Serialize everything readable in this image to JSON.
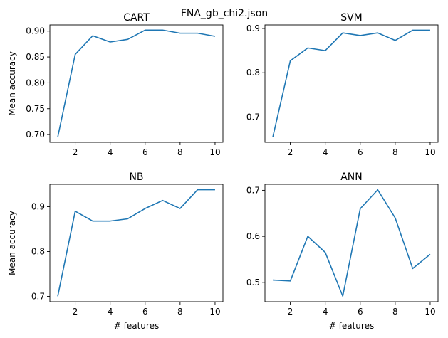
{
  "figure": {
    "title": "FNA_gb_chi2.json"
  },
  "chart_data": [
    {
      "type": "line",
      "title": "CART",
      "xlabel": "",
      "ylabel": "Mean accuracy",
      "x": [
        1,
        2,
        3,
        4,
        5,
        6,
        7,
        8,
        9,
        10
      ],
      "values": [
        0.695,
        0.855,
        0.891,
        0.879,
        0.884,
        0.902,
        0.902,
        0.896,
        0.896,
        0.89
      ],
      "xlim": [
        0.55,
        10.45
      ],
      "ylim": [
        0.685,
        0.912
      ],
      "xticks": [
        2,
        4,
        6,
        8,
        10
      ],
      "yticks": [
        0.7,
        0.75,
        0.8,
        0.85,
        0.9
      ],
      "ytick_labels": [
        "0.70",
        "0.75",
        "0.80",
        "0.85",
        "0.90"
      ],
      "grid": false
    },
    {
      "type": "line",
      "title": "SVM",
      "xlabel": "",
      "ylabel": "",
      "x": [
        1,
        2,
        3,
        4,
        5,
        6,
        7,
        8,
        9,
        10
      ],
      "values": [
        0.655,
        0.827,
        0.856,
        0.85,
        0.89,
        0.884,
        0.89,
        0.873,
        0.896,
        0.896
      ],
      "xlim": [
        0.55,
        10.45
      ],
      "ylim": [
        0.643,
        0.908
      ],
      "xticks": [
        2,
        4,
        6,
        8,
        10
      ],
      "yticks": [
        0.7,
        0.8,
        0.9
      ],
      "ytick_labels": [
        "0.7",
        "0.8",
        "0.9"
      ],
      "grid": false
    },
    {
      "type": "line",
      "title": "NB",
      "xlabel": "# features",
      "ylabel": "Mean accuracy",
      "x": [
        1,
        2,
        3,
        4,
        5,
        6,
        7,
        8,
        9,
        10
      ],
      "values": [
        0.7,
        0.89,
        0.868,
        0.868,
        0.873,
        0.896,
        0.914,
        0.896,
        0.938,
        0.938
      ],
      "xlim": [
        0.55,
        10.45
      ],
      "ylim": [
        0.688,
        0.95
      ],
      "xticks": [
        2,
        4,
        6,
        8,
        10
      ],
      "yticks": [
        0.7,
        0.8,
        0.9
      ],
      "ytick_labels": [
        "0.7",
        "0.8",
        "0.9"
      ],
      "grid": false
    },
    {
      "type": "line",
      "title": "ANN",
      "xlabel": "# features",
      "ylabel": "",
      "x": [
        1,
        2,
        3,
        4,
        5,
        6,
        7,
        8,
        9,
        10
      ],
      "values": [
        0.505,
        0.503,
        0.6,
        0.565,
        0.47,
        0.66,
        0.701,
        0.64,
        0.53,
        0.561
      ],
      "xlim": [
        0.55,
        10.45
      ],
      "ylim": [
        0.458,
        0.713
      ],
      "xticks": [
        2,
        4,
        6,
        8,
        10
      ],
      "yticks": [
        0.5,
        0.6,
        0.7
      ],
      "ytick_labels": [
        "0.5",
        "0.6",
        "0.7"
      ],
      "grid": false
    }
  ]
}
